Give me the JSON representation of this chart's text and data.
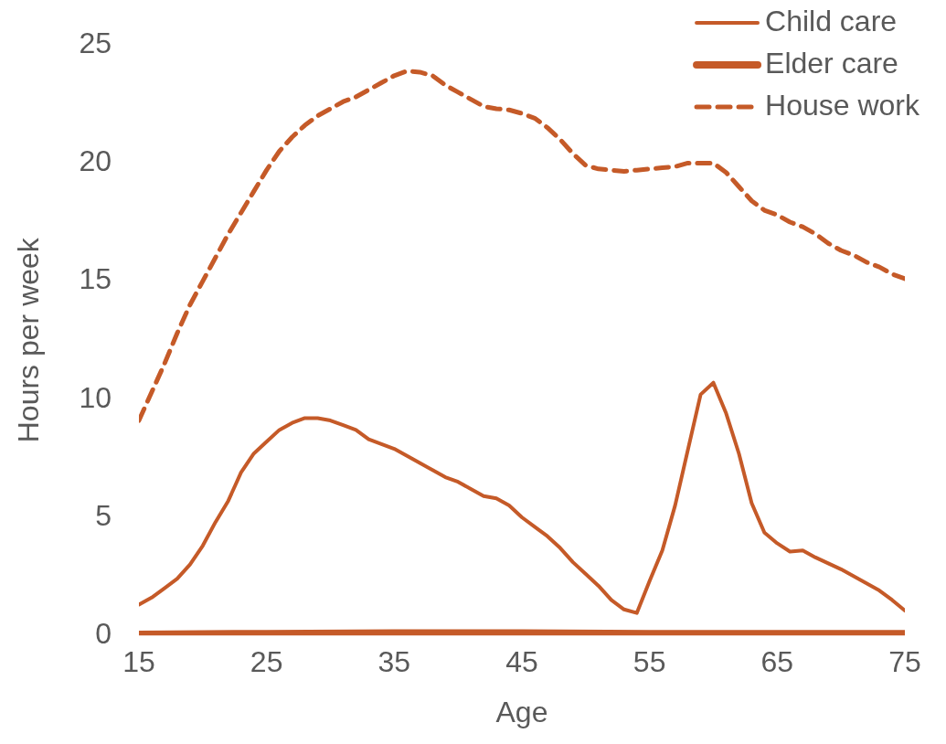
{
  "chart_data": {
    "type": "line",
    "xlabel": "Age",
    "ylabel": "Hours per week",
    "xlim": [
      15,
      75
    ],
    "xticks": [
      15,
      25,
      35,
      45,
      55,
      65,
      75
    ],
    "ylim": [
      0,
      25
    ],
    "yticks": [
      0,
      5,
      10,
      15,
      20,
      25
    ],
    "grid": false,
    "legend": "top right",
    "marker": "none",
    "series": [
      {
        "name": "Child care",
        "color": "#c55a28",
        "line_style": "solid",
        "x": [
          15,
          16,
          17,
          18,
          19,
          20,
          21,
          22,
          23,
          24,
          25,
          26,
          27,
          28,
          29,
          30,
          31,
          32,
          33,
          34,
          35,
          36,
          37,
          38,
          39,
          40,
          41,
          42,
          43,
          44,
          45,
          46,
          47,
          48,
          49,
          50,
          51,
          52,
          53,
          54,
          55,
          56,
          57,
          59,
          60,
          61,
          62,
          63,
          64,
          65,
          66,
          67,
          68,
          69,
          70,
          71,
          72,
          73,
          74,
          75
        ],
        "values": [
          1.3,
          1.6,
          2.0,
          2.4,
          3.0,
          3.8,
          4.8,
          5.7,
          6.9,
          7.7,
          8.2,
          8.7,
          9.0,
          9.2,
          9.2,
          9.1,
          8.9,
          8.7,
          8.3,
          8.1,
          7.9,
          7.6,
          7.3,
          7.0,
          6.7,
          6.5,
          6.2,
          5.9,
          5.8,
          5.5,
          5.0,
          4.6,
          4.2,
          3.7,
          3.1,
          2.6,
          2.1,
          1.5,
          1.1,
          0.95,
          2.3,
          3.6,
          5.5,
          10.2,
          10.7,
          9.4,
          7.7,
          5.6,
          4.35,
          3.9,
          3.55,
          3.6,
          3.3,
          3.05,
          2.8,
          2.5,
          2.2,
          1.9,
          1.5,
          1.05
        ]
      },
      {
        "name": "Elder care",
        "color": "#c55a28",
        "line_style": "solid",
        "x": [
          15,
          25,
          35,
          45,
          55,
          65,
          75
        ],
        "values": [
          0.05,
          0.08,
          0.1,
          0.1,
          0.08,
          0.08,
          0.08
        ]
      },
      {
        "name": "House work",
        "color": "#c55a28",
        "line_style": "dashed",
        "x": [
          15,
          16,
          17,
          18,
          19,
          20,
          21,
          22,
          23,
          24,
          25,
          26,
          27,
          28,
          29,
          30,
          31,
          32,
          33,
          34,
          35,
          36,
          37,
          38,
          39,
          40,
          41,
          42,
          43,
          44,
          45,
          46,
          47,
          48,
          49,
          50,
          51,
          52,
          53,
          54,
          55,
          56,
          57,
          58,
          59,
          60,
          61,
          62,
          63,
          64,
          65,
          66,
          67,
          68,
          69,
          70,
          71,
          72,
          73,
          74,
          75
        ],
        "values": [
          9.1,
          10.3,
          11.5,
          12.8,
          14.0,
          15.0,
          16.0,
          17.0,
          17.9,
          18.8,
          19.7,
          20.5,
          21.1,
          21.6,
          22.0,
          22.3,
          22.6,
          22.8,
          23.1,
          23.4,
          23.7,
          23.9,
          23.85,
          23.7,
          23.3,
          23.0,
          22.7,
          22.4,
          22.3,
          22.25,
          22.1,
          21.9,
          21.5,
          21.0,
          20.4,
          19.9,
          19.75,
          19.7,
          19.65,
          19.7,
          19.75,
          19.8,
          19.85,
          20.0,
          20.0,
          20.0,
          19.6,
          19.0,
          18.4,
          18.0,
          17.8,
          17.5,
          17.3,
          17.0,
          16.6,
          16.3,
          16.1,
          15.8,
          15.6,
          15.3,
          15.1
        ]
      }
    ]
  }
}
